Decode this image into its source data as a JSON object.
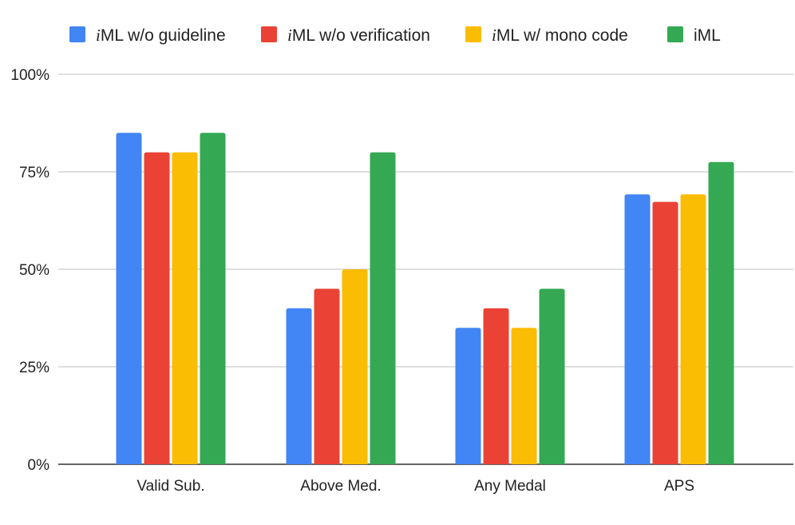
{
  "chart_data": {
    "type": "bar",
    "title": "",
    "xlabel": "",
    "ylabel": "",
    "ylim": [
      0,
      100
    ],
    "yticks": [
      "0%",
      "25%",
      "50%",
      "75%",
      "100%"
    ],
    "ytick_values": [
      0,
      25,
      50,
      75,
      100
    ],
    "grid": true,
    "legend_position": "top",
    "categories": [
      "Valid Sub.",
      "Above Med.",
      "Any Medal",
      "APS"
    ],
    "series": [
      {
        "name": "iML w/o guideline",
        "prefix": "i",
        "suffix": "ML w/o guideline",
        "color": "#4285f4",
        "values": [
          85,
          40,
          35,
          69.2
        ]
      },
      {
        "name": "iML w/o verification",
        "prefix": "i",
        "suffix": "ML w/o verification",
        "color": "#ea4335",
        "values": [
          80,
          45,
          40,
          67.3
        ]
      },
      {
        "name": "iML w/ mono code",
        "prefix": "i",
        "suffix": "ML w/ mono code",
        "color": "#fbbc04",
        "values": [
          80,
          50,
          35,
          69.2
        ]
      },
      {
        "name": "iML",
        "prefix": "",
        "suffix": "iML",
        "color": "#34a853",
        "values": [
          85,
          80,
          45,
          77.5
        ]
      }
    ]
  }
}
